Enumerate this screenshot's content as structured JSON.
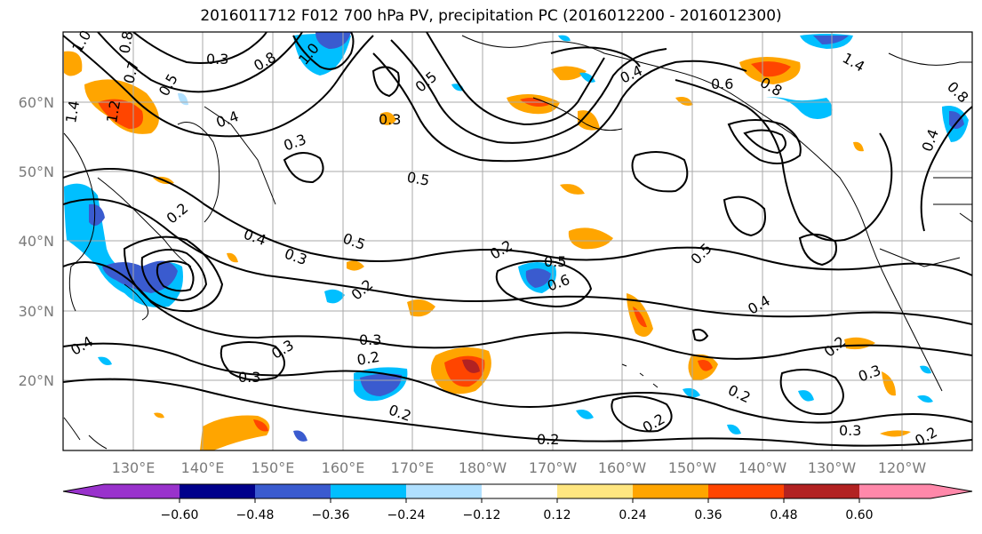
{
  "title": "2016011712 F012 700 hPa PV, precipitation PC (2016012200 - 2016012300)",
  "lat_labels": [
    "60°N",
    "50°N",
    "40°N",
    "30°N",
    "20°N"
  ],
  "lon_labels": [
    "130°E",
    "140°E",
    "150°E",
    "160°E",
    "170°E",
    "180°W",
    "170°W",
    "160°W",
    "150°W",
    "140°W",
    "130°W",
    "120°W"
  ],
  "colorbar": {
    "ticks": [
      "−0.60",
      "−0.48",
      "−0.36",
      "−0.24",
      "−0.12",
      "0.12",
      "0.24",
      "0.36",
      "0.48",
      "0.60"
    ],
    "colors": [
      "#9932cc",
      "#00008b",
      "#3a5bcf",
      "#00bfff",
      "#b0e0ff",
      "#ffffff",
      "#ffe680",
      "#ffa500",
      "#ff4500",
      "#b22222",
      "#ff88aa"
    ]
  },
  "contour_labels": [
    "1.0",
    "0.8",
    "0.3",
    "0.7",
    "0.5",
    "1.4",
    "1.2",
    "0.4",
    "0.3",
    "1.0",
    "0.8",
    "0.5",
    "0.3",
    "0.4",
    "0.6",
    "0.8",
    "1.4",
    "0.8",
    "0.5",
    "0.2",
    "0.4",
    "0.3",
    "0.5",
    "0.2",
    "0.5",
    "0.6",
    "0.5",
    "0.4",
    "0.2",
    "0.3",
    "0.4",
    "0.3",
    "0.2",
    "0.3",
    "0.2",
    "0.2",
    "0.4",
    "0.2",
    "0.2",
    "0.2",
    "0.3",
    "0.2",
    "0.3"
  ]
}
